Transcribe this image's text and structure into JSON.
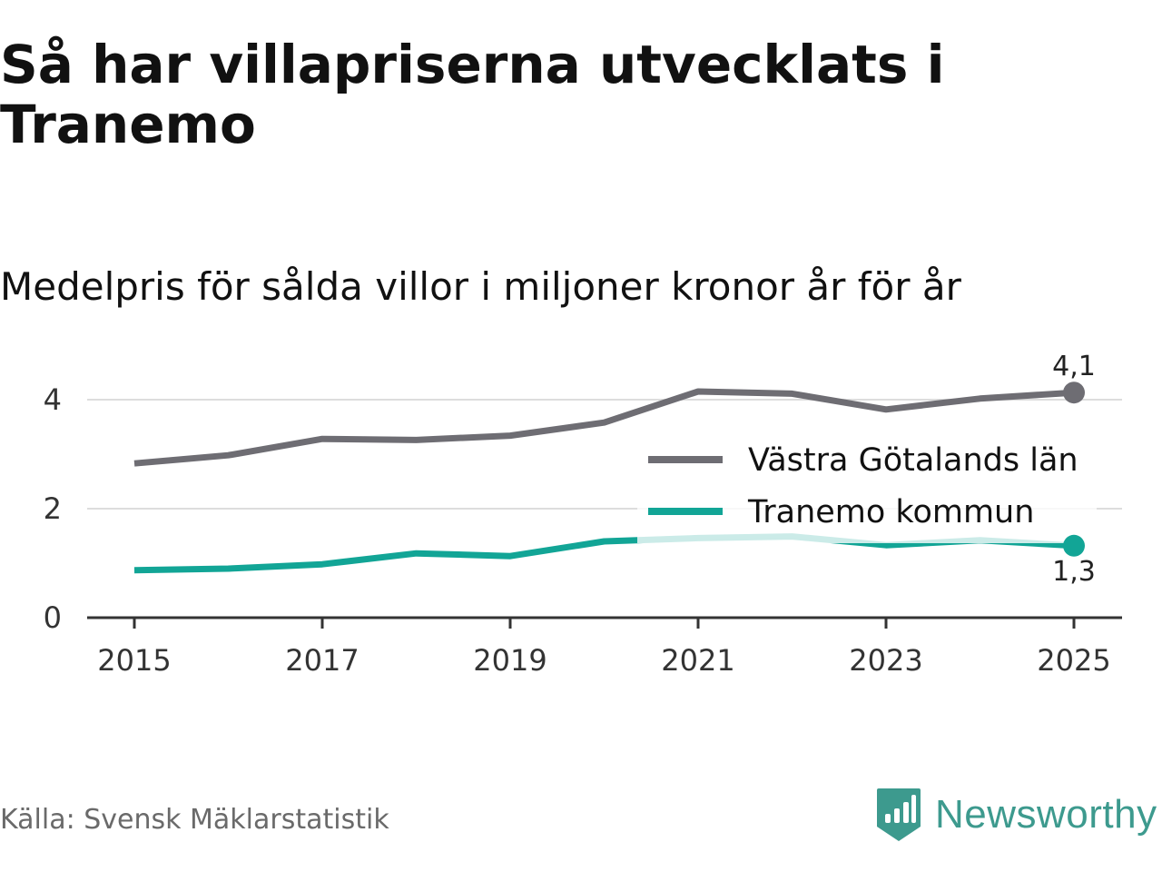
{
  "title": "Så har villapriserna utvecklats i Tranemo",
  "subtitle": "Medelpris för sålda villor i miljoner kronor år för år",
  "source": "Källa: Svensk Mäklarstatistik",
  "brand": {
    "name": "Newsworthy",
    "color": "#3d9a8e"
  },
  "chart_data": {
    "type": "line",
    "title": "Så har villapriserna utvecklats i Tranemo",
    "subtitle": "Medelpris för sålda villor i miljoner kronor år för år",
    "xlabel": "",
    "ylabel": "",
    "x": [
      2015,
      2016,
      2017,
      2018,
      2019,
      2020,
      2021,
      2022,
      2023,
      2024,
      2025
    ],
    "x_ticks": [
      2015,
      2017,
      2019,
      2021,
      2023,
      2025
    ],
    "y_ticks": [
      0,
      2,
      4
    ],
    "ylim": [
      0,
      4.2
    ],
    "grid": true,
    "legend_position": "right",
    "series": [
      {
        "name": "Västra Götalands län",
        "color": "#6e6d73",
        "values": [
          2.83,
          2.98,
          3.28,
          3.26,
          3.34,
          3.58,
          4.15,
          4.11,
          3.82,
          4.02,
          4.13
        ],
        "end_label": "4,1"
      },
      {
        "name": "Tranemo kommun",
        "color": "#12a596",
        "values": [
          0.87,
          0.9,
          0.98,
          1.18,
          1.13,
          1.4,
          1.46,
          1.49,
          1.33,
          1.42,
          1.32
        ],
        "end_label": "1,3"
      }
    ]
  }
}
